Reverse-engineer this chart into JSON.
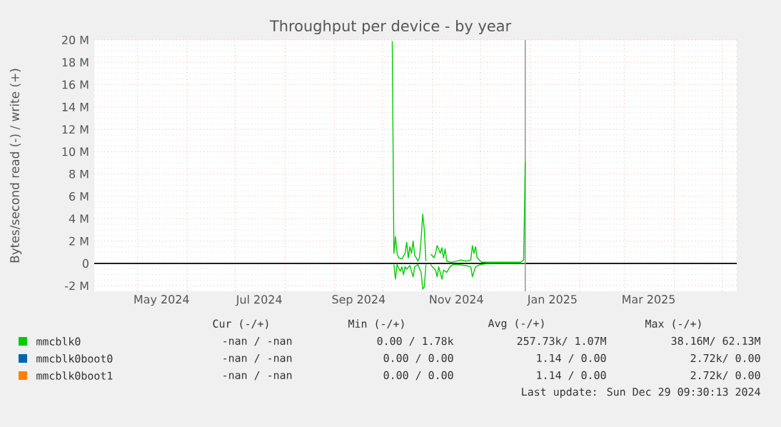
{
  "chart_data": {
    "type": "line",
    "title": "Throughput per device - by year",
    "ylabel": "Bytes/second read (-) / write (+)",
    "xlim": [
      "2024-04-04",
      "2025-05-10"
    ],
    "xticks": [
      {
        "value": "2024-05-01",
        "label": null
      },
      {
        "value": "2024-06-01",
        "label": null
      },
      {
        "value": "2024-07-01",
        "label": null
      },
      {
        "value": "2024-08-01",
        "label": null
      },
      {
        "value": "2024-09-01",
        "label": null
      },
      {
        "value": "2024-10-01",
        "label": null
      },
      {
        "value": "2024-11-01",
        "label": null
      },
      {
        "value": "2024-12-01",
        "label": null
      },
      {
        "value": "2025-01-01",
        "label": null
      },
      {
        "value": "2025-02-01",
        "label": null
      },
      {
        "value": "2025-03-01",
        "label": null
      },
      {
        "value": "2025-04-01",
        "label": null
      },
      {
        "value": "2025-05-01",
        "label": null
      },
      {
        "value": "2024-05-16",
        "label": "May 2024"
      },
      {
        "value": "2024-07-16",
        "label": "Jul 2024"
      },
      {
        "value": "2024-09-16",
        "label": "Sep 2024"
      },
      {
        "value": "2024-11-16",
        "label": "Nov 2024"
      },
      {
        "value": "2025-01-15",
        "label": "Jan 2025"
      },
      {
        "value": "2025-03-16",
        "label": "Mar 2025"
      }
    ],
    "ylim": [
      -2.5,
      20
    ],
    "yticks": [
      {
        "value": -2,
        "label": "-2 M"
      },
      0,
      {
        "value": 2,
        "label": "2 M"
      },
      {
        "value": 4,
        "label": "4 M"
      },
      {
        "value": 6,
        "label": "6 M"
      },
      {
        "value": 8,
        "label": "8 M"
      },
      {
        "value": 10,
        "label": "10 M"
      },
      {
        "value": 12,
        "label": "12 M"
      },
      {
        "value": 14,
        "label": "14 M"
      },
      {
        "value": 16,
        "label": "16 M"
      },
      {
        "value": 18,
        "label": "18 M"
      },
      {
        "value": 20,
        "label": "20 M"
      }
    ],
    "grid": true,
    "legend": "bottom",
    "marker": "none",
    "line_style": "solid",
    "series": [
      {
        "name": "mmcblk0",
        "color": "#00cc00",
        "x": [
          "2024-10-07",
          "2024-10-08",
          "2024-10-09",
          "2024-10-10",
          "2024-10-11",
          "2024-10-13",
          "2024-10-15",
          "2024-10-16",
          "2024-10-17",
          "2024-10-18",
          "2024-10-19",
          "2024-10-20",
          "2024-10-21",
          "2024-10-22",
          "2024-10-23",
          "2024-10-24",
          "2024-10-25",
          "2024-10-26",
          "2024-10-27",
          "2024-10-28",
          "2024-10-29",
          "2024-10-31",
          "2024-11-01",
          "2024-11-02",
          "2024-11-03",
          "2024-11-04",
          "2024-11-06",
          "2024-11-07",
          "2024-11-08",
          "2024-11-09",
          "2024-11-10",
          "2024-11-13",
          "2024-11-16",
          "2024-11-19",
          "2024-11-22",
          "2024-11-25",
          "2024-11-26",
          "2024-11-27",
          "2024-11-28",
          "2024-11-29",
          "2024-12-01",
          "2024-12-02",
          "2024-12-08",
          "2024-12-17",
          "2024-12-26",
          "2024-12-27",
          "2024-12-28",
          "2024-12-29"
        ],
        "values": [
          19.9,
          0.9,
          2.4,
          0.9,
          0.5,
          0.4,
          0.9,
          1.9,
          0.5,
          1.5,
          0.9,
          2.0,
          0.7,
          0.5,
          0.2,
          0.5,
          2.2,
          4.4,
          3.0,
          0.2,
          null,
          0.8,
          0.7,
          0.5,
          0.9,
          1.6,
          0.9,
          1.4,
          0.5,
          1.3,
          0.2,
          0.1,
          0.2,
          0.3,
          0.2,
          0.3,
          1.6,
          0.9,
          1.5,
          0.5,
          0.2,
          0.1,
          0.1,
          0.1,
          0.1,
          0.2,
          0.3,
          9.1
        ]
      },
      {
        "color": "#00cc00",
        "x": [
          "2024-10-08",
          "2024-10-09",
          "2024-10-10",
          "2024-10-12",
          "2024-10-13",
          "2024-10-14",
          "2024-10-15",
          "2024-10-16",
          "2024-10-18",
          "2024-10-20",
          "2024-10-21",
          "2024-10-23",
          "2024-10-25",
          "2024-10-26",
          "2024-10-27",
          "2024-10-28",
          "2024-10-29",
          "2024-10-31",
          "2024-11-01",
          "2024-11-03",
          "2024-11-04",
          "2024-11-05",
          "2024-11-07",
          "2024-11-08",
          "2024-11-10",
          "2024-11-12",
          "2024-11-14",
          "2024-11-17",
          "2024-11-22",
          "2024-11-25",
          "2024-11-26",
          "2024-11-28",
          "2024-12-01",
          "2024-12-06",
          "2024-12-28",
          "2024-12-29"
        ],
        "values": [
          -0.1,
          -1.4,
          -0.1,
          -0.7,
          -0.3,
          -1.0,
          -0.3,
          -0.5,
          -0.2,
          -1.2,
          -0.3,
          -0.1,
          -0.8,
          -2.3,
          -2.1,
          -0.1,
          null,
          -0.1,
          -0.3,
          -0.6,
          -1.2,
          -0.3,
          -1.4,
          -0.6,
          -0.8,
          -0.3,
          -0.1,
          -0.1,
          -0.2,
          -0.3,
          -1.2,
          -0.3,
          -0.1,
          0,
          0,
          0
        ]
      },
      {
        "name": "mmcblk0boot0",
        "color": "#0066b3"
      },
      {
        "name": "mmcblk0boot1",
        "color": "#ff8000"
      }
    ],
    "ref_lines": [
      {
        "axis": "x",
        "value": "2024-12-29",
        "color": "#999999"
      }
    ],
    "annotations": [
      "Cur (-/+)",
      "Min (-/+)",
      "Avg (-/+)",
      "Max (-/+)",
      "-nan / -nan",
      "0.00 / 1.78k",
      "257.73k/ 1.07M",
      "38.16M/ 62.13M",
      "-nan / -nan",
      "0.00 / 0.00",
      "1.14 / 0.00",
      "2.72k/ 0.00",
      "-nan / -nan",
      "0.00 / 0.00",
      "1.14 / 0.00",
      "2.72k/ 0.00",
      "Last update: Sun Dec 29 09:30:13 2024"
    ]
  }
}
